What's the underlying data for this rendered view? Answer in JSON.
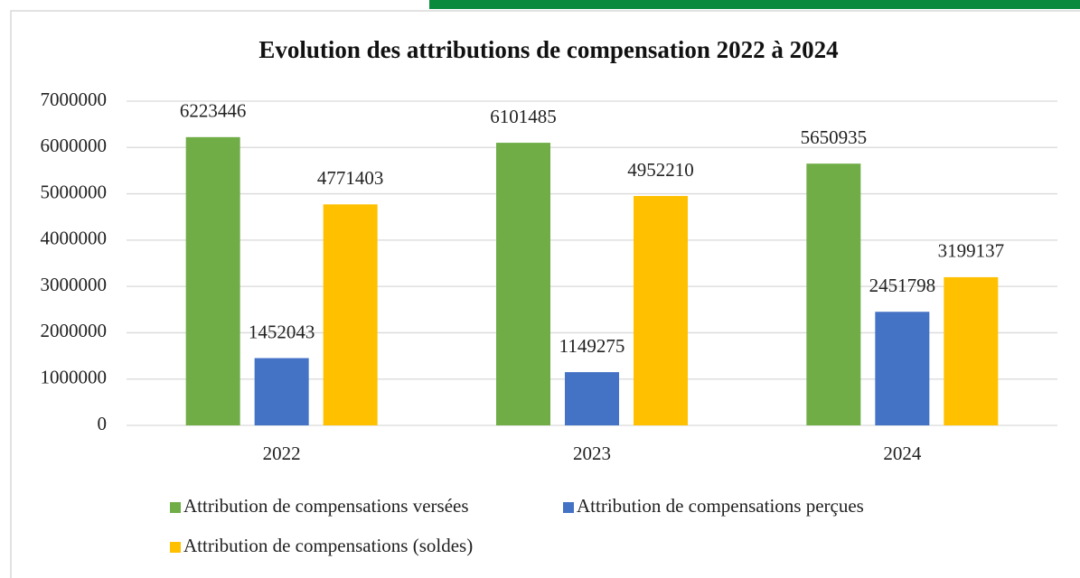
{
  "chart_data": {
    "type": "bar",
    "title": "Evolution des attributions de compensation 2022 à 2024",
    "categories": [
      "2022",
      "2023",
      "2024"
    ],
    "series": [
      {
        "name": "Attribution de compensations versées",
        "color": "#70ad47",
        "values": [
          6223446,
          6101485,
          5650935
        ]
      },
      {
        "name": "Attribution de compensations perçues",
        "color": "#4472c4",
        "values": [
          1452043,
          1149275,
          2451798
        ]
      },
      {
        "name": "Attribution de compensations (soldes)",
        "color": "#ffc000",
        "values": [
          4771403,
          4952210,
          3199137
        ]
      }
    ],
    "ylim": [
      0,
      7000000
    ],
    "yticks": [
      0,
      1000000,
      2000000,
      3000000,
      4000000,
      5000000,
      6000000,
      7000000
    ],
    "grid": true,
    "legend": "bottom"
  }
}
